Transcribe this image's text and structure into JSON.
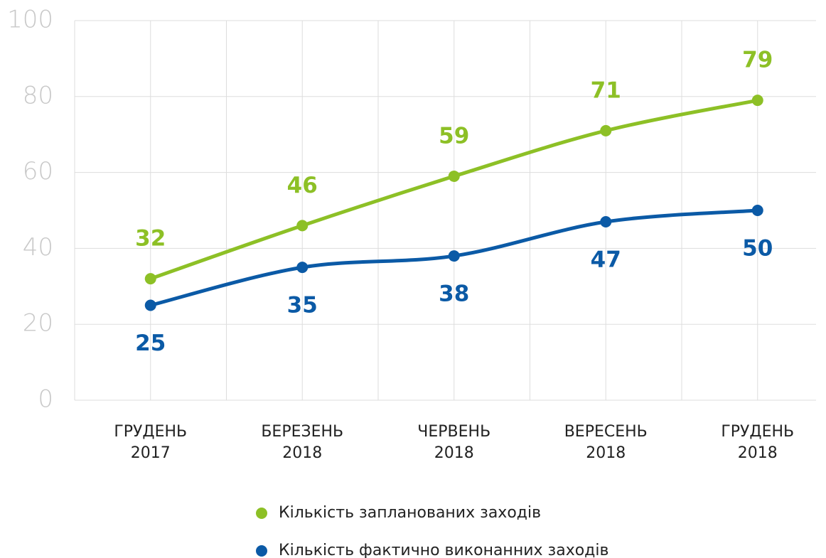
{
  "chart_data": {
    "type": "line",
    "categories": [
      "ГРУДЕНЬ 2017",
      "БЕРЕЗЕНЬ 2018",
      "ЧЕРВЕНЬ 2018",
      "ВЕРЕСЕНЬ 2018",
      "ГРУДЕНЬ 2018"
    ],
    "series": [
      {
        "name": "Кількість запланованих заходів",
        "color": "#8dc026",
        "values": [
          32,
          46,
          59,
          71,
          79
        ]
      },
      {
        "name": "Кількість фактично виконанних заходів",
        "color": "#0b5aa6",
        "values": [
          25,
          35,
          38,
          47,
          50
        ]
      }
    ],
    "ylim": [
      0,
      100
    ],
    "yticks": [
      0,
      20,
      40,
      60,
      80,
      100
    ],
    "grid": true,
    "legend": "bottom"
  }
}
